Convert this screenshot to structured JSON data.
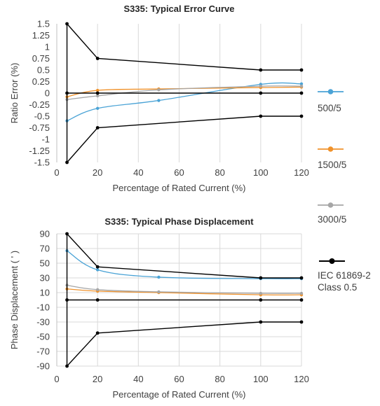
{
  "colors": {
    "series_500": "#4aa3d6",
    "series_1500": "#f0922b",
    "series_3000": "#a6a6a6",
    "series_iec": "#000000",
    "grid": "#d9d9d9",
    "text": "#404040"
  },
  "legend": {
    "items": [
      {
        "label": "500/5",
        "color": "#4aa3d6"
      },
      {
        "label": "1500/5",
        "color": "#f0922b"
      },
      {
        "label": "3000/5",
        "color": "#a6a6a6"
      },
      {
        "label": "IEC 61869-2",
        "label2": "Class 0.5",
        "color": "#000000"
      }
    ]
  },
  "chart_data": [
    {
      "type": "line",
      "title": "S335: Typical Error Curve",
      "xlabel": "Percentage of Rated Current (%)",
      "ylabel": "Ratio Error (%)",
      "xlim": [
        0,
        120
      ],
      "ylim": [
        -1.5,
        1.5
      ],
      "xticks": [
        0,
        20,
        40,
        60,
        80,
        100,
        120
      ],
      "xtick_labels": [
        "0",
        "20",
        "40",
        "60",
        "80",
        "100",
        "120"
      ],
      "yticks": [
        1.5,
        1.25,
        1,
        0.75,
        0.5,
        0.25,
        0,
        -0.25,
        -0.5,
        -0.75,
        -1,
        -1.25,
        -1.5
      ],
      "ytick_labels": [
        "1.5",
        "1.25",
        "1",
        "0.75",
        "0.5",
        "0.25",
        "0",
        "-0.25",
        "-0.5",
        "-0.75",
        "-1",
        "-1.25",
        "-1.5"
      ],
      "grid": "vertical",
      "series": [
        {
          "name": "500/5",
          "color": "#4aa3d6",
          "smooth": true,
          "x": [
            5,
            20,
            50,
            100,
            120
          ],
          "y": [
            -0.6,
            -0.33,
            -0.16,
            0.19,
            0.2
          ]
        },
        {
          "name": "1500/5",
          "color": "#f0922b",
          "smooth": true,
          "x": [
            5,
            20,
            50,
            100,
            120
          ],
          "y": [
            -0.08,
            0.06,
            0.09,
            0.12,
            0.13
          ]
        },
        {
          "name": "3000/5",
          "color": "#a6a6a6",
          "smooth": true,
          "x": [
            5,
            20,
            50,
            100,
            120
          ],
          "y": [
            -0.14,
            -0.06,
            0.07,
            0.15,
            0.15
          ]
        },
        {
          "name": "IEC 61869-2 Class 0.5",
          "color": "#000000",
          "smooth": false,
          "x": [
            5,
            5,
            20,
            100,
            120
          ],
          "y": [
            1.5,
            1.5,
            0.75,
            0.5,
            0.5
          ]
        },
        {
          "name": "IEC 61869-2 Class 0.5",
          "color": "#000000",
          "smooth": false,
          "x": [
            5,
            20,
            100,
            120
          ],
          "y": [
            0,
            0,
            0,
            0
          ]
        },
        {
          "name": "IEC 61869-2 Class 0.5",
          "color": "#000000",
          "smooth": false,
          "x": [
            5,
            20,
            100,
            120
          ],
          "y": [
            -1.5,
            -0.75,
            -0.5,
            -0.5
          ]
        },
        {
          "name": "IEC 61869-2 Class 0.5",
          "color": "#000000",
          "smooth": false,
          "markers": false,
          "x": [
            5,
            5
          ],
          "y": [
            -1.5,
            1.5
          ]
        }
      ]
    },
    {
      "type": "line",
      "title": "S335: Typical Phase Displacement",
      "xlabel": "Percentage of Rated Current (%)",
      "ylabel": "Phase Displacement ( ' )",
      "xlim": [
        0,
        120
      ],
      "ylim": [
        -90,
        90
      ],
      "xticks": [
        0,
        20,
        40,
        60,
        80,
        100,
        120
      ],
      "xtick_labels": [
        "0",
        "20",
        "40",
        "60",
        "80",
        "100",
        "120"
      ],
      "yticks": [
        90,
        70,
        50,
        30,
        10,
        -10,
        -30,
        -50,
        -70,
        -90
      ],
      "ytick_labels": [
        "90",
        "70",
        "50",
        "30",
        "10",
        "-10",
        "-30",
        "-50",
        "-70",
        "-90"
      ],
      "grid": "both",
      "series": [
        {
          "name": "500/5",
          "color": "#4aa3d6",
          "smooth": true,
          "x": [
            5,
            20,
            50,
            100,
            120
          ],
          "y": [
            67,
            41,
            31,
            29,
            29
          ]
        },
        {
          "name": "1500/5",
          "color": "#f0922b",
          "smooth": true,
          "x": [
            5,
            20,
            50,
            100,
            120
          ],
          "y": [
            15,
            12,
            10,
            7,
            7
          ]
        },
        {
          "name": "3000/5",
          "color": "#a6a6a6",
          "smooth": true,
          "x": [
            5,
            20,
            50,
            100,
            120
          ],
          "y": [
            20,
            14,
            11,
            9,
            9
          ]
        },
        {
          "name": "IEC 61869-2 Class 0.5",
          "color": "#000000",
          "smooth": false,
          "x": [
            5,
            20,
            100,
            120
          ],
          "y": [
            90,
            45,
            30,
            30
          ]
        },
        {
          "name": "IEC 61869-2 Class 0.5",
          "color": "#000000",
          "smooth": false,
          "x": [
            5,
            20,
            100,
            120
          ],
          "y": [
            0,
            0,
            0,
            0
          ]
        },
        {
          "name": "IEC 61869-2 Class 0.5",
          "color": "#000000",
          "smooth": false,
          "x": [
            5,
            20,
            100,
            120
          ],
          "y": [
            -90,
            -45,
            -30,
            -30
          ]
        },
        {
          "name": "IEC 61869-2 Class 0.5",
          "color": "#000000",
          "smooth": false,
          "markers": false,
          "x": [
            5,
            5
          ],
          "y": [
            -90,
            90
          ]
        }
      ]
    }
  ]
}
